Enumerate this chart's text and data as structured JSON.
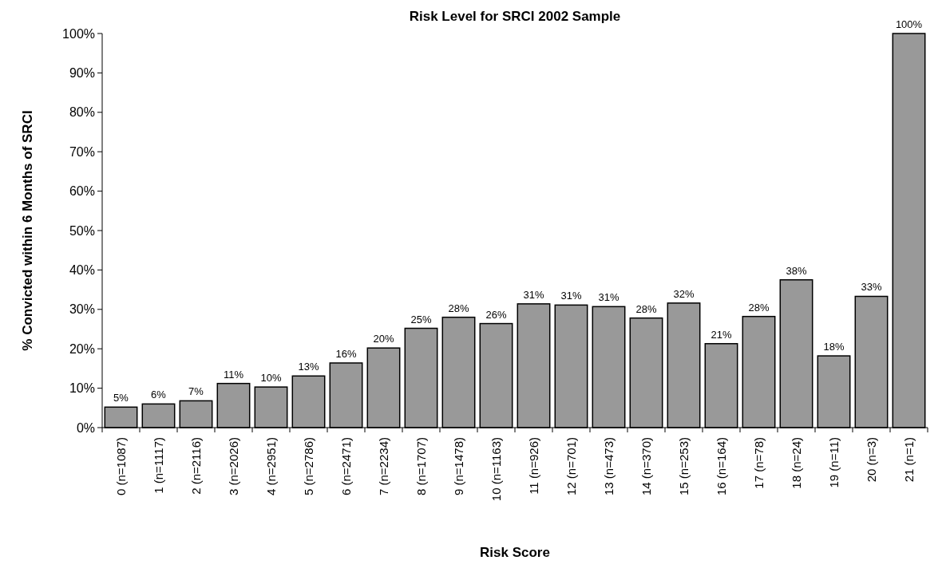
{
  "chart_data": {
    "type": "bar",
    "title": "Risk Level for SRCI 2002 Sample",
    "xlabel": "Risk Score",
    "ylabel": "% Convicted within 6 Months of SRCI",
    "categories": [
      "0 (n=1087)",
      "1 (n=1117)",
      "2 (n=2116)",
      "3 (n=2026)",
      "4 (n=2951)",
      "5 (n=2786)",
      "6 (n=2471)",
      "7 (n=2234)",
      "8 (n=1707)",
      "9 (n=1478)",
      "10 (n=1163)",
      "11 (n=926)",
      "12 (n=701)",
      "13 (n=473)",
      "14 (n=370)",
      "15 (n=253)",
      "16 (n=164)",
      "17 (n=78)",
      "18 (n=24)",
      "19 (n=11)",
      "20 (n=3)",
      "21 (n=1)"
    ],
    "values": [
      5.2,
      6.0,
      6.8,
      11.2,
      10.3,
      13.1,
      16.4,
      20.2,
      25.2,
      28.0,
      26.4,
      31.4,
      31.1,
      30.7,
      27.8,
      31.6,
      21.3,
      28.2,
      37.5,
      18.2,
      33.3,
      100
    ],
    "value_labels": [
      "5%",
      "6%",
      "7%",
      "11%",
      "10%",
      "13%",
      "16%",
      "20%",
      "25%",
      "28%",
      "26%",
      "31%",
      "31%",
      "31%",
      "28%",
      "32%",
      "21%",
      "28%",
      "38%",
      "18%",
      "33%",
      "100%"
    ],
    "color": "#999999",
    "ylim": [
      0,
      100
    ],
    "yticks": [
      {
        "value": 0,
        "label": "0%"
      },
      {
        "value": 10,
        "label": "10%"
      },
      {
        "value": 20,
        "label": "20%"
      },
      {
        "value": 30,
        "label": "30%"
      },
      {
        "value": 40,
        "label": "40%"
      },
      {
        "value": 50,
        "label": "50%"
      },
      {
        "value": 60,
        "label": "60%"
      },
      {
        "value": 70,
        "label": "70%"
      },
      {
        "value": 80,
        "label": "80%"
      },
      {
        "value": 90,
        "label": "90%"
      },
      {
        "value": 100,
        "label": "100%"
      }
    ],
    "grid": false
  }
}
